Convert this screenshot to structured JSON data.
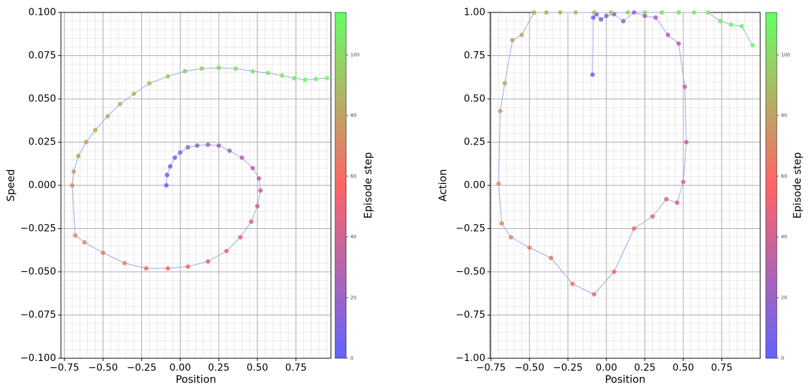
{
  "chart_data": [
    {
      "type": "scatter",
      "x_label": "Position",
      "y_label": "Speed",
      "colorbar_label": "Episode step",
      "xlim": [
        -0.773,
        0.977
      ],
      "ylim": [
        -0.1,
        0.1
      ],
      "xticks": [
        {
          "value": -0.75,
          "label": "−0.75"
        },
        {
          "value": -0.5,
          "label": "−0.50"
        },
        {
          "value": -0.25,
          "label": "−0.25"
        },
        {
          "value": 0,
          "label": "0.00"
        },
        {
          "value": 0.25,
          "label": "0.25"
        },
        {
          "value": 0.5,
          "label": "0.50"
        },
        {
          "value": 0.75,
          "label": "0.75"
        }
      ],
      "yticks": [
        {
          "value": -0.1,
          "label": "−0.100"
        },
        {
          "value": -0.075,
          "label": "−0.075"
        },
        {
          "value": -0.05,
          "label": "−0.050"
        },
        {
          "value": -0.025,
          "label": "−0.025"
        },
        {
          "value": 0,
          "label": "0.000"
        },
        {
          "value": 0.025,
          "label": "0.025"
        },
        {
          "value": 0.05,
          "label": "0.050"
        },
        {
          "value": 0.075,
          "label": "0.075"
        },
        {
          "value": 0.1,
          "label": "0.100"
        }
      ],
      "grid": true,
      "minor_grid": true,
      "line_color": "#9aa6ee",
      "colormap": [
        "#6464ff",
        "#ff6464",
        "#64ff64"
      ],
      "clim": [
        0,
        114
      ],
      "cticks": [
        0,
        20,
        40,
        60,
        80,
        100
      ],
      "x": [
        -0.09,
        -0.085,
        -0.065,
        -0.035,
        0.0,
        0.05,
        0.11,
        0.18,
        0.25,
        0.32,
        0.4,
        0.47,
        0.51,
        0.52,
        0.5,
        0.46,
        0.39,
        0.3,
        0.18,
        0.05,
        -0.08,
        -0.22,
        -0.36,
        -0.5,
        -0.62,
        -0.68,
        -0.7,
        -0.69,
        -0.66,
        -0.61,
        -0.55,
        -0.47,
        -0.39,
        -0.3,
        -0.2,
        -0.08,
        0.03,
        0.14,
        0.25,
        0.36,
        0.47,
        0.57,
        0.66,
        0.74,
        0.81,
        0.88,
        0.95
      ],
      "y": [
        0.0,
        0.006,
        0.011,
        0.016,
        0.019,
        0.022,
        0.023,
        0.0235,
        0.023,
        0.02,
        0.016,
        0.01,
        0.004,
        -0.003,
        -0.012,
        -0.021,
        -0.03,
        -0.038,
        -0.044,
        -0.047,
        -0.048,
        -0.048,
        -0.045,
        -0.039,
        -0.033,
        -0.029,
        0.0,
        0.008,
        0.017,
        0.025,
        0.032,
        0.04,
        0.047,
        0.053,
        0.059,
        0.063,
        0.066,
        0.0675,
        0.068,
        0.0675,
        0.066,
        0.065,
        0.0635,
        0.062,
        0.061,
        0.0615,
        0.062
      ],
      "c": [
        0,
        3,
        6,
        9,
        12,
        15,
        18,
        21,
        24,
        27,
        30,
        33,
        36,
        39,
        42,
        45,
        48,
        51,
        54,
        57,
        60,
        63,
        66,
        69,
        72,
        74,
        75,
        77,
        79,
        81,
        83,
        85,
        87,
        89,
        91,
        93,
        95,
        97,
        99,
        101,
        103,
        105,
        107,
        109,
        111,
        113,
        114
      ]
    },
    {
      "type": "scatter",
      "x_label": "Position",
      "y_label": "Action",
      "colorbar_label": "Episode step",
      "xlim": [
        -0.755,
        1.0
      ],
      "ylim": [
        -1,
        1
      ],
      "xticks": [
        {
          "value": -0.75,
          "label": "−0.75"
        },
        {
          "value": -0.5,
          "label": "−0.50"
        },
        {
          "value": -0.25,
          "label": "−0.25"
        },
        {
          "value": 0,
          "label": "0.00"
        },
        {
          "value": 0.25,
          "label": "0.25"
        },
        {
          "value": 0.5,
          "label": "0.50"
        },
        {
          "value": 0.75,
          "label": "0.75"
        }
      ],
      "yticks": [
        {
          "value": -1,
          "label": "−1.00"
        },
        {
          "value": -0.75,
          "label": "−0.75"
        },
        {
          "value": -0.5,
          "label": "−0.50"
        },
        {
          "value": -0.25,
          "label": "−0.25"
        },
        {
          "value": 0,
          "label": "0.00"
        },
        {
          "value": 0.25,
          "label": "0.25"
        },
        {
          "value": 0.5,
          "label": "0.50"
        },
        {
          "value": 0.75,
          "label": "0.75"
        },
        {
          "value": 1,
          "label": "1.00"
        }
      ],
      "grid": true,
      "minor_grid": true,
      "line_color": "#9aa6ee",
      "colormap": [
        "#6464ff",
        "#ff6464",
        "#64ff64"
      ],
      "clim": [
        0,
        114
      ],
      "cticks": [
        0,
        20,
        40,
        60,
        80,
        100
      ],
      "x": [
        -0.09,
        -0.085,
        -0.065,
        -0.035,
        0.0,
        0.05,
        0.11,
        0.18,
        0.25,
        0.32,
        0.4,
        0.47,
        0.51,
        0.52,
        0.5,
        0.46,
        0.39,
        0.3,
        0.18,
        0.05,
        -0.08,
        -0.22,
        -0.36,
        -0.5,
        -0.62,
        -0.68,
        -0.7,
        -0.69,
        -0.66,
        -0.61,
        -0.55,
        -0.47,
        -0.39,
        -0.3,
        -0.2,
        -0.08,
        0.03,
        0.14,
        0.25,
        0.36,
        0.47,
        0.57,
        0.66,
        0.74,
        0.81,
        0.88,
        0.95
      ],
      "y": [
        0.64,
        0.97,
        0.99,
        0.96,
        0.98,
        0.99,
        0.95,
        1.0,
        0.98,
        0.97,
        0.87,
        0.82,
        0.57,
        0.25,
        0.02,
        -0.1,
        -0.08,
        -0.18,
        -0.25,
        -0.5,
        -0.63,
        -0.57,
        -0.42,
        -0.36,
        -0.3,
        -0.22,
        0.01,
        0.43,
        0.59,
        0.84,
        0.87,
        1.0,
        1.0,
        1.0,
        1.0,
        1.0,
        1.0,
        1.0,
        1.0,
        1.0,
        1.0,
        1.0,
        1.0,
        0.95,
        0.93,
        0.92,
        0.81
      ],
      "c": [
        0,
        3,
        6,
        9,
        12,
        15,
        18,
        21,
        24,
        27,
        30,
        33,
        36,
        39,
        42,
        45,
        48,
        51,
        54,
        57,
        60,
        63,
        66,
        69,
        72,
        74,
        75,
        77,
        79,
        81,
        83,
        85,
        87,
        89,
        91,
        93,
        95,
        97,
        99,
        101,
        103,
        105,
        107,
        109,
        111,
        113,
        114
      ]
    }
  ]
}
